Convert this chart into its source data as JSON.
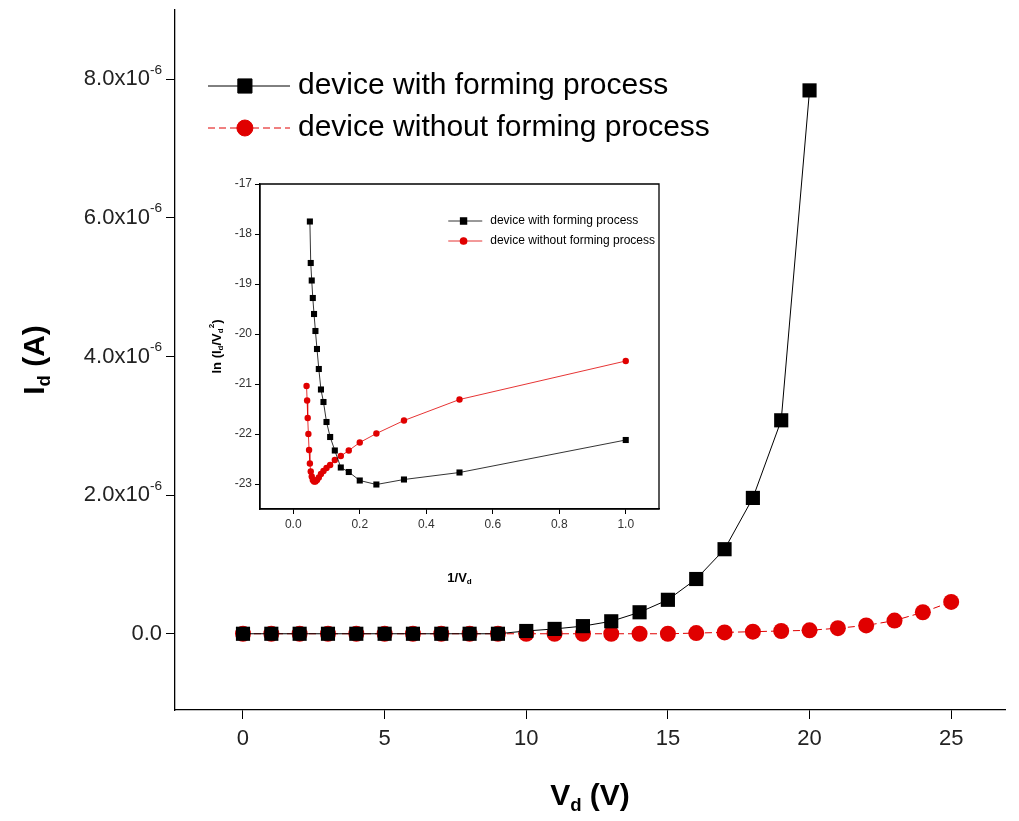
{
  "chart_data": [
    {
      "type": "line",
      "xlabel": "V$_{d}$ (V)",
      "ylabel": "I$_{d}$ (A)",
      "xlim": [
        -2.4,
        26.9
      ],
      "xticks": [
        0,
        5,
        10,
        15,
        20,
        25
      ],
      "ylim": [
        -1.1e-06,
        9e-06
      ],
      "yticks": [
        {
          "value": 0,
          "label": "0.0"
        },
        {
          "value": 2e-06,
          "label": "2.0x10$^{-6}$"
        },
        {
          "value": 4e-06,
          "label": "4.0x10$^{-6}$"
        },
        {
          "value": 6e-06,
          "label": "6.0x10$^{-6}$"
        },
        {
          "value": 8e-06,
          "label": "8.0x10$^{-6}$"
        }
      ],
      "legend": "top left",
      "series": [
        {
          "name": "device with forming process",
          "color": "#000000",
          "marker": "square",
          "line_style": "solid",
          "x": [
            0,
            1,
            2,
            3,
            4,
            5,
            6,
            7,
            8,
            9,
            10,
            11,
            12,
            13,
            14,
            15,
            16,
            17,
            18,
            19,
            20
          ],
          "values": [
            0,
            0,
            0,
            0,
            0,
            0,
            0,
            0,
            0,
            0,
            4e-08,
            7e-08,
            1.1e-07,
            1.8e-07,
            3.1e-07,
            4.9e-07,
            7.9e-07,
            1.22e-06,
            1.96e-06,
            3.08e-06,
            7.84e-06
          ]
        },
        {
          "name": "device without forming process",
          "color": "#e00000",
          "marker": "circle",
          "line_style": "dashed",
          "x": [
            0,
            1,
            2,
            3,
            4,
            5,
            6,
            7,
            8,
            9,
            10,
            11,
            12,
            13,
            14,
            15,
            16,
            17,
            18,
            19,
            20,
            21,
            22,
            23,
            24,
            25
          ],
          "values": [
            0,
            0,
            0,
            0,
            0,
            0,
            0,
            0,
            0,
            0,
            0,
            0,
            0,
            0,
            0,
            0,
            1e-08,
            2e-08,
            3e-08,
            4e-08,
            5e-08,
            8e-08,
            1.2e-07,
            1.9e-07,
            3.1e-07,
            4.6e-07
          ]
        }
      ]
    },
    {
      "type": "line",
      "xlabel": "1/V$_{d}$",
      "ylabel": "ln (I$_{d}$/V$_{d}$$^{2}$)",
      "xlim": [
        -0.1,
        1.1
      ],
      "xticks": [
        {
          "value": 0,
          "label": "0.0"
        },
        0.2,
        0.4,
        0.6,
        0.8,
        {
          "value": 1,
          "label": "1.0"
        }
      ],
      "ylim": [
        -23.5,
        -17
      ],
      "yticks": [
        -23,
        -22,
        -21,
        -20,
        -19,
        -18,
        -17
      ],
      "legend": "top right",
      "series": [
        {
          "name": "device with forming process",
          "color": "#000000",
          "marker": "square",
          "line_style": "solid",
          "x": [
            0.05,
            0.0526,
            0.0556,
            0.0588,
            0.0625,
            0.0667,
            0.0714,
            0.0769,
            0.0833,
            0.0909,
            0.1,
            0.111,
            0.125,
            0.143,
            0.167,
            0.2,
            0.25,
            0.333,
            0.5,
            1
          ],
          "values": [
            -17.75,
            -18.58,
            -18.93,
            -19.28,
            -19.6,
            -19.94,
            -20.3,
            -20.7,
            -21.11,
            -21.36,
            -21.76,
            -22.06,
            -22.33,
            -22.67,
            -22.76,
            -22.93,
            -23.01,
            -22.91,
            -22.77,
            -22.12
          ]
        },
        {
          "name": "device without forming process",
          "color": "#e00000",
          "marker": "circle",
          "line_style": "solid",
          "x": [
            0.04,
            0.0417,
            0.0435,
            0.0455,
            0.0476,
            0.05,
            0.0526,
            0.0556,
            0.0588,
            0.0625,
            0.0667,
            0.0714,
            0.0769,
            0.0833,
            0.0909,
            0.1,
            0.111,
            0.125,
            0.143,
            0.167,
            0.2,
            0.25,
            0.333,
            0.5,
            1
          ],
          "values": [
            -21.04,
            -21.33,
            -21.68,
            -22.0,
            -22.32,
            -22.59,
            -22.75,
            -22.85,
            -22.92,
            -22.95,
            -22.95,
            -22.92,
            -22.87,
            -22.8,
            -22.74,
            -22.68,
            -22.62,
            -22.52,
            -22.44,
            -22.33,
            -22.17,
            -21.99,
            -21.73,
            -21.31,
            -20.54
          ]
        }
      ]
    }
  ]
}
